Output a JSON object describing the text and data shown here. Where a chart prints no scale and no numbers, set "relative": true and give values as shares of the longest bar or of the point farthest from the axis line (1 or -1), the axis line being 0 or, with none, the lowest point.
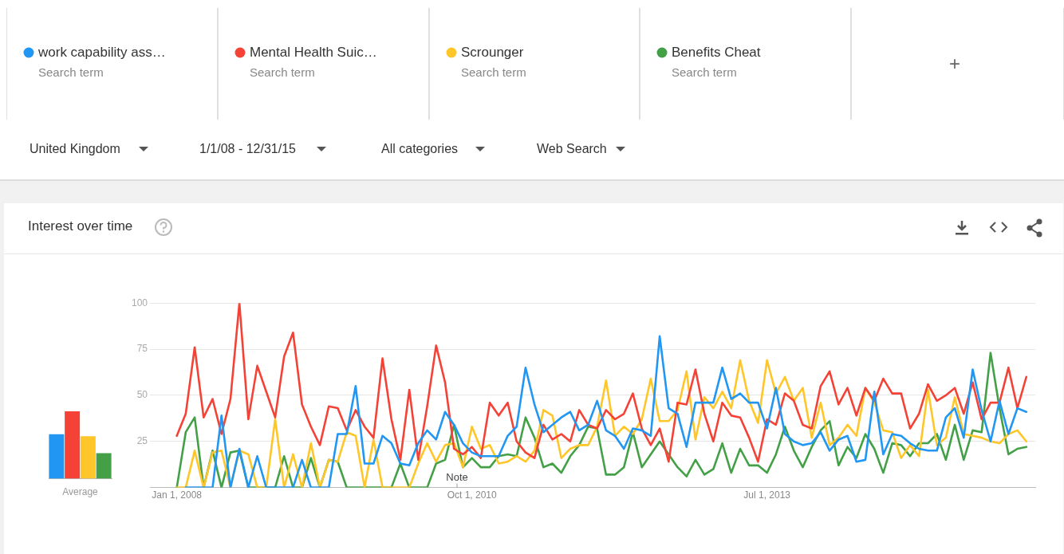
{
  "chart_data": [
    {
      "type": "other",
      "annotations": [
        "Search term",
        "Search term",
        "Search term",
        "Search term",
        "+",
        "United Kingdom",
        "1/1/08 - 12/31/15",
        "All categories",
        "Web Search"
      ]
    },
    {
      "type": "bar",
      "xlabel": "Average",
      "relative": true,
      "categories": [
        null,
        null,
        null,
        null
      ],
      "values": [
        0.66,
        1,
        0.63,
        0.38
      ],
      "colors": [
        "#2196f3",
        "#f44336",
        "#ffc629",
        "#43a047"
      ]
    },
    {
      "type": "line",
      "title": "Interest over time",
      "legend": "top",
      "grid": "y",
      "xlim": [
        "2007-10",
        "2016-01"
      ],
      "xticks": [
        {
          "value": "2008-01",
          "label": "Jan 1, 2008"
        },
        {
          "value": "2010-10",
          "label": "Oct 1, 2010"
        },
        {
          "value": "2013-07",
          "label": "Jul 1, 2013"
        }
      ],
      "ylim": [
        0,
        100
      ],
      "yticks": [
        25,
        50,
        75,
        100
      ],
      "annotations": [
        "Note"
      ],
      "x": [
        "2008-01",
        "2008-02",
        "2008-03",
        "2008-04",
        "2008-05",
        "2008-06",
        "2008-07",
        "2008-08",
        "2008-09",
        "2008-10",
        "2008-11",
        "2008-12",
        "2009-01",
        "2009-02",
        "2009-03",
        "2009-04",
        "2009-05",
        "2009-06",
        "2009-07",
        "2009-08",
        "2009-09",
        "2009-10",
        "2009-11",
        "2009-12",
        "2010-01",
        "2010-02",
        "2010-03",
        "2010-04",
        "2010-05",
        "2010-06",
        "2010-07",
        "2010-08",
        "2010-09",
        "2010-10",
        "2010-11",
        "2010-12",
        "2011-01",
        "2011-02",
        "2011-03",
        "2011-04",
        "2011-05",
        "2011-06",
        "2011-07",
        "2011-08",
        "2011-09",
        "2011-10",
        "2011-11",
        "2011-12",
        "2012-01",
        "2012-02",
        "2012-03",
        "2012-04",
        "2012-05",
        "2012-06",
        "2012-07",
        "2012-08",
        "2012-09",
        "2012-10",
        "2012-11",
        "2012-12",
        "2013-01",
        "2013-02",
        "2013-03",
        "2013-04",
        "2013-05",
        "2013-06",
        "2013-07",
        "2013-08",
        "2013-09",
        "2013-10",
        "2013-11",
        "2013-12",
        "2014-01",
        "2014-02",
        "2014-03",
        "2014-04",
        "2014-05",
        "2014-06",
        "2014-07",
        "2014-08",
        "2014-09",
        "2014-10",
        "2014-11",
        "2014-12",
        "2015-01",
        "2015-02",
        "2015-03",
        "2015-04",
        "2015-05",
        "2015-06",
        "2015-07",
        "2015-08",
        "2015-09",
        "2015-10",
        "2015-11",
        "2015-12"
      ],
      "series": [
        {
          "name": "work capability ass…",
          "color": "#2196f3",
          "values": [
            null,
            0,
            0,
            0,
            0,
            39,
            0,
            21,
            0,
            17,
            0,
            0,
            0,
            0,
            15,
            0,
            0,
            0,
            29,
            29,
            55,
            13,
            13,
            28,
            24,
            13,
            12,
            24,
            31,
            26,
            41,
            34,
            24,
            19,
            17,
            17,
            17,
            28,
            33,
            65,
            45,
            30,
            34,
            38,
            41,
            31,
            34,
            47,
            31,
            28,
            21,
            32,
            31,
            28,
            82,
            43,
            40,
            22,
            46,
            46,
            46,
            65,
            48,
            51,
            46,
            46,
            32,
            54,
            29,
            25,
            23,
            24,
            30,
            20,
            26,
            28,
            14,
            15,
            52,
            18,
            29,
            28,
            24,
            21,
            20,
            20,
            38,
            43,
            27,
            64,
            42,
            25,
            47,
            29,
            43,
            41
          ]
        },
        {
          "name": "Mental Health Suic…",
          "color": "#f44336",
          "values": [
            28,
            40,
            76,
            38,
            48,
            29,
            48,
            100,
            37,
            66,
            52,
            38,
            71,
            84,
            45,
            33,
            23,
            44,
            43,
            31,
            42,
            33,
            27,
            70,
            37,
            15,
            53,
            15,
            44,
            77,
            57,
            21,
            18,
            22,
            16,
            46,
            39,
            46,
            25,
            19,
            16,
            34,
            26,
            29,
            25,
            42,
            34,
            32,
            42,
            37,
            40,
            51,
            32,
            23,
            32,
            14,
            46,
            45,
            64,
            40,
            25,
            46,
            39,
            38,
            27,
            14,
            37,
            34,
            51,
            47,
            34,
            32,
            55,
            63,
            45,
            54,
            39,
            54,
            47,
            59,
            51,
            51,
            32,
            40,
            56,
            47,
            50,
            54,
            40,
            57,
            37,
            46,
            46,
            65,
            43,
            60
          ]
        },
        {
          "name": "Scrounger",
          "color": "#ffc629",
          "values": [
            0,
            0,
            20,
            0,
            19,
            20,
            0,
            20,
            18,
            0,
            0,
            37,
            0,
            18,
            0,
            24,
            0,
            15,
            14,
            30,
            28,
            0,
            26,
            0,
            0,
            0,
            0,
            13,
            24,
            14,
            23,
            24,
            11,
            33,
            21,
            23,
            13,
            14,
            17,
            14,
            20,
            42,
            39,
            16,
            21,
            23,
            23,
            33,
            58,
            28,
            33,
            29,
            37,
            59,
            36,
            36,
            42,
            63,
            26,
            49,
            43,
            52,
            43,
            69,
            47,
            35,
            69,
            51,
            60,
            47,
            54,
            27,
            46,
            23,
            27,
            34,
            28,
            54,
            46,
            31,
            30,
            16,
            23,
            17,
            53,
            23,
            27,
            49,
            29,
            28,
            27,
            25,
            24,
            29,
            31,
            25
          ]
        },
        {
          "name": "Benefits Cheat",
          "color": "#43a047",
          "values": [
            0,
            30,
            38,
            0,
            20,
            0,
            19,
            20,
            0,
            0,
            0,
            0,
            17,
            0,
            0,
            16,
            0,
            15,
            14,
            0,
            0,
            0,
            0,
            0,
            0,
            13,
            0,
            0,
            0,
            13,
            15,
            34,
            11,
            16,
            11,
            11,
            17,
            18,
            17,
            38,
            27,
            11,
            13,
            8,
            17,
            23,
            33,
            32,
            7,
            7,
            11,
            30,
            11,
            18,
            25,
            18,
            11,
            6,
            15,
            7,
            10,
            24,
            8,
            21,
            12,
            12,
            8,
            18,
            33,
            20,
            11,
            22,
            31,
            36,
            12,
            22,
            16,
            29,
            21,
            8,
            24,
            23,
            17,
            24,
            24,
            29,
            15,
            34,
            15,
            31,
            30,
            73,
            43,
            18,
            21,
            22
          ]
        }
      ]
    }
  ]
}
